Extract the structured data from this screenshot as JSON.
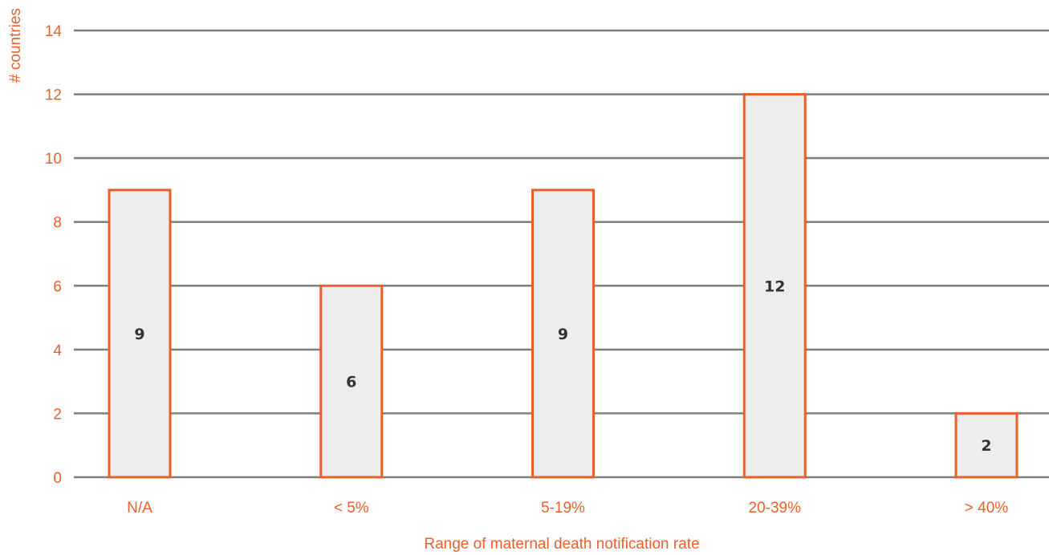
{
  "chart_data": {
    "type": "bar",
    "title": "",
    "xlabel": "Range of maternal death notification rate",
    "ylabel": "# countries",
    "categories": [
      "N/A",
      "< 5%",
      "5-19%",
      "20-39%",
      "> 40%"
    ],
    "values": [
      9,
      6,
      9,
      12,
      2
    ],
    "data_labels": [
      "9",
      "6",
      "9",
      "12",
      "2"
    ],
    "ylim": [
      0,
      14
    ],
    "yticks": [
      0,
      2,
      4,
      6,
      8,
      10,
      12,
      14
    ],
    "grid": true,
    "legend": "none"
  },
  "colors": {
    "accent": "#E8602C",
    "bar_fill": "#EDEDED",
    "gridline": "#7F7F7F",
    "data_label": "#333333"
  }
}
